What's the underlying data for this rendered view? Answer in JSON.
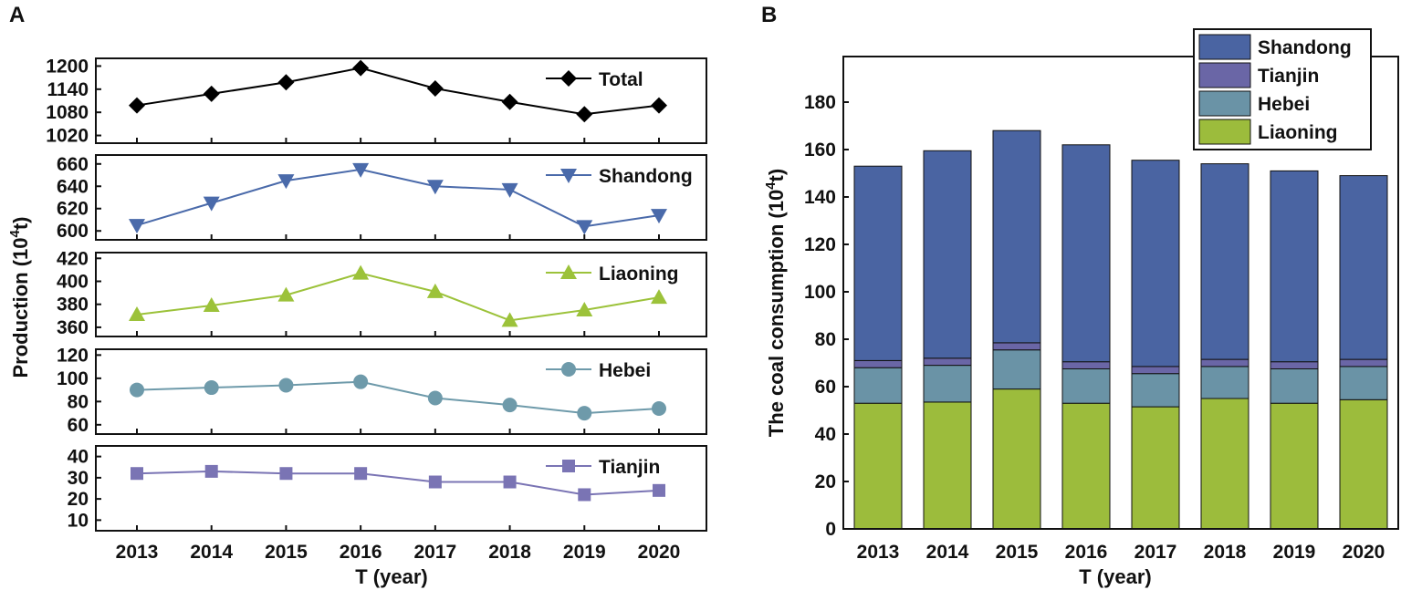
{
  "chart_data": [
    {
      "panel_label": "A",
      "type": "line",
      "xlabel": "T (year)",
      "ylabel": "Production (10",
      "ylabel_sup": "4",
      "ylabel_tail": "t)",
      "x": [
        "2013",
        "2014",
        "2015",
        "2016",
        "2017",
        "2018",
        "2019",
        "2020"
      ],
      "subplots": [
        {
          "name": "Total",
          "color": "#000000",
          "marker": "diamond",
          "ylim": [
            1000,
            1220
          ],
          "yticks": [
            "1200",
            "1140",
            "1080",
            "1020"
          ],
          "values": [
            1098,
            1128,
            1158,
            1195,
            1142,
            1107,
            1075,
            1098
          ]
        },
        {
          "name": "Shandong",
          "color": "#4a6aaa",
          "marker": "triangle-down",
          "ylim": [
            592,
            668
          ],
          "yticks": [
            "660",
            "640",
            "620",
            "600"
          ],
          "values": [
            605,
            625,
            645,
            655,
            640,
            637,
            604,
            614
          ]
        },
        {
          "name": "Liaoning",
          "color": "#9cc23a",
          "marker": "triangle-up",
          "ylim": [
            352,
            425
          ],
          "yticks": [
            "420",
            "400",
            "380",
            "360"
          ],
          "values": [
            371,
            379,
            388,
            407,
            391,
            366,
            375,
            386
          ]
        },
        {
          "name": "Hebei",
          "color": "#6e9aaa",
          "marker": "circle",
          "ylim": [
            52,
            125
          ],
          "yticks": [
            "120",
            "100",
            "80",
            "60"
          ],
          "values": [
            90,
            92,
            94,
            97,
            83,
            77,
            70,
            74
          ]
        },
        {
          "name": "Tianjin",
          "color": "#7a74b4",
          "marker": "square",
          "ylim": [
            5,
            45
          ],
          "yticks": [
            "40",
            "30",
            "20",
            "10"
          ],
          "values": [
            32,
            33,
            32,
            32,
            28,
            28,
            22,
            24
          ]
        }
      ]
    },
    {
      "panel_label": "B",
      "type": "bar",
      "stacked": true,
      "xlabel": "T (year)",
      "ylabel": "The coal consumption (10",
      "ylabel_sup": "4",
      "ylabel_tail": "t)",
      "categories": [
        "2013",
        "2014",
        "2015",
        "2016",
        "2017",
        "2018",
        "2019",
        "2020"
      ],
      "ylim": [
        0,
        190
      ],
      "yticks": [
        "0",
        "20",
        "40",
        "60",
        "80",
        "100",
        "120",
        "140",
        "160",
        "180"
      ],
      "legend_position": "top-right",
      "series": [
        {
          "name": "Liaoning",
          "color": "#9cbc3c",
          "values": [
            53,
            53.5,
            59,
            53,
            51.5,
            55,
            53,
            54.5
          ]
        },
        {
          "name": "Hebei",
          "color": "#6a93a6",
          "values": [
            15,
            15.5,
            16.5,
            14.5,
            14,
            13.5,
            14.5,
            14
          ]
        },
        {
          "name": "Tianjin",
          "color": "#6a66a6",
          "values": [
            3,
            3,
            3,
            3,
            3,
            3,
            3,
            3
          ]
        },
        {
          "name": "Shandong",
          "color": "#4a64a2",
          "values": [
            82,
            87.5,
            89.5,
            91.5,
            87,
            82.5,
            80.5,
            77.5
          ]
        }
      ],
      "legend_order": [
        "Shandong",
        "Tianjin",
        "Hebei",
        "Liaoning"
      ]
    }
  ]
}
